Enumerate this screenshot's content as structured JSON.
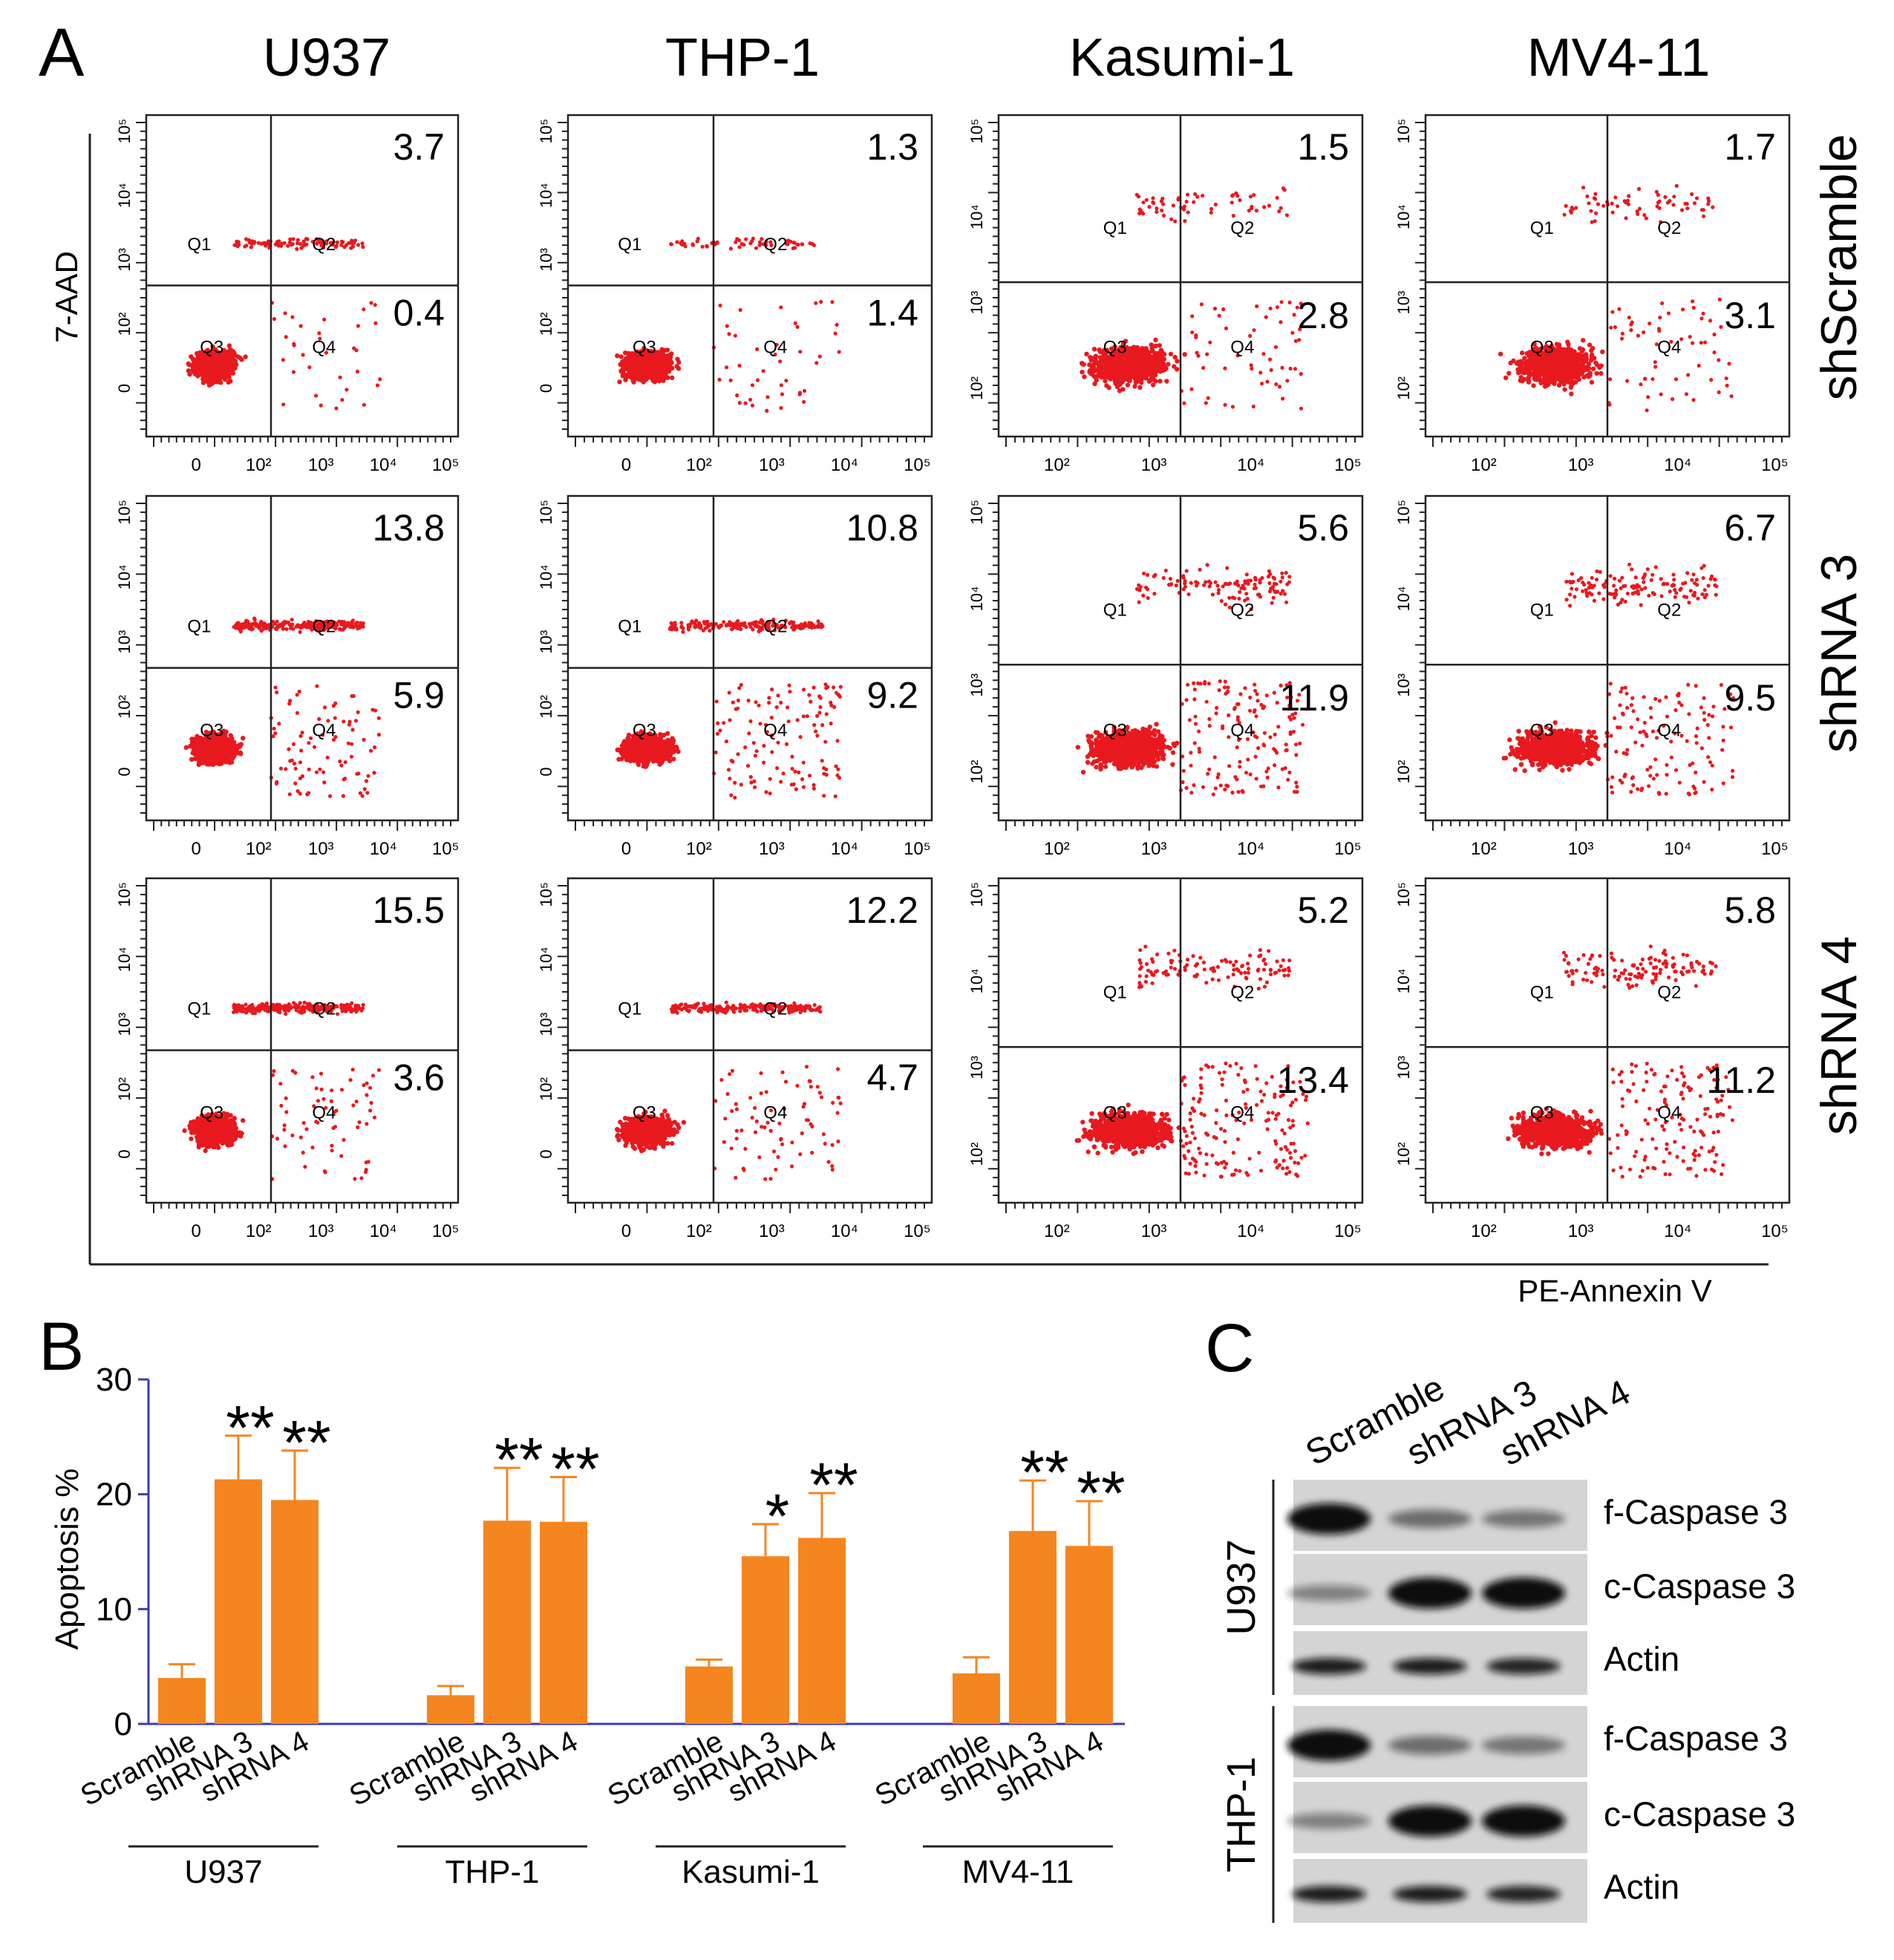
{
  "panel_letters": {
    "a": "A",
    "b": "B",
    "c": "C"
  },
  "panel_a": {
    "cell_lines": [
      "U937",
      "THP-1",
      "Kasumi-1",
      "MV4-11"
    ],
    "conditions": [
      "shScramble",
      "shRNA 3",
      "shRNA 4"
    ],
    "y_label": "7-AAD",
    "x_label": "PE-Annexin V",
    "quadrant_labels": [
      "Q1",
      "Q2",
      "Q3",
      "Q4"
    ],
    "tick_labels_full": [
      "0",
      "10²",
      "10³",
      "10⁴",
      "10⁵"
    ],
    "tick_labels_short": [
      "10²",
      "10³",
      "10⁴",
      "10⁵"
    ],
    "late_apoptosis_pct": [
      [
        "3.7",
        "1.3",
        "1.5",
        "1.7"
      ],
      [
        "13.8",
        "10.8",
        "5.6",
        "6.7"
      ],
      [
        "15.5",
        "12.2",
        "5.2",
        "5.8"
      ]
    ],
    "early_apoptosis_pct": [
      [
        "0.4",
        "1.4",
        "2.8",
        "3.1"
      ],
      [
        "5.9",
        "9.2",
        "11.9",
        "9.5"
      ],
      [
        "3.6",
        "4.7",
        "13.4",
        "11.2"
      ]
    ],
    "dot_color": "#e8191f"
  },
  "chart_data": {
    "type": "bar",
    "ylabel": "Apoptosis %",
    "ylim": [
      0,
      30
    ],
    "yticks": [
      0,
      10,
      20,
      30
    ],
    "bar_color": "#f5851f",
    "axis_color": "#3b3bb3",
    "groups": [
      {
        "name": "U937",
        "categories": [
          "Scramble",
          "shRNA 3",
          "shRNA 4"
        ],
        "values": [
          4.0,
          21.3,
          19.5
        ],
        "errors": [
          1.2,
          3.8,
          4.3
        ],
        "significance": [
          "",
          "**",
          "**"
        ]
      },
      {
        "name": "THP-1",
        "categories": [
          "Scramble",
          "shRNA 3",
          "shRNA 4"
        ],
        "values": [
          2.5,
          17.7,
          17.6
        ],
        "errors": [
          0.8,
          4.6,
          3.9
        ],
        "significance": [
          "",
          "**",
          "**"
        ]
      },
      {
        "name": "Kasumi-1",
        "categories": [
          "Scramble",
          "shRNA 3",
          "shRNA 4"
        ],
        "values": [
          5.0,
          14.6,
          16.2
        ],
        "errors": [
          0.6,
          2.8,
          3.9
        ],
        "significance": [
          "",
          "*",
          "**"
        ]
      },
      {
        "name": "MV4-11",
        "categories": [
          "Scramble",
          "shRNA 3",
          "shRNA 4"
        ],
        "values": [
          4.4,
          16.8,
          15.5
        ],
        "errors": [
          1.4,
          4.4,
          3.9
        ],
        "significance": [
          "",
          "**",
          "**"
        ]
      }
    ]
  },
  "panel_c": {
    "lanes": [
      "Scramble",
      "shRNA 3",
      "shRNA 4"
    ],
    "blocks": [
      {
        "cell_line": "U937",
        "rows": [
          "f-Caspase 3",
          "c-Caspase 3",
          "Actin"
        ]
      },
      {
        "cell_line": "THP-1",
        "rows": [
          "f-Caspase 3",
          "c-Caspase 3",
          "Actin"
        ]
      }
    ]
  }
}
